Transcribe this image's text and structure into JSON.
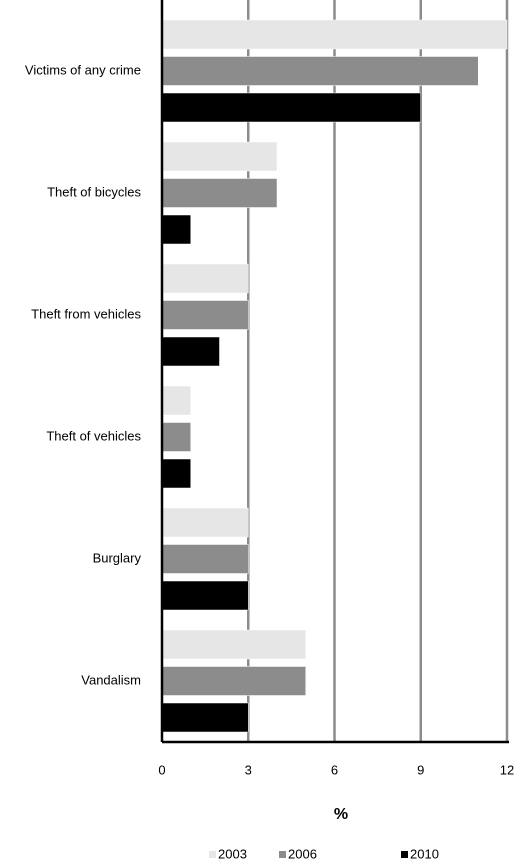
{
  "chart_data": {
    "type": "hbar",
    "categories": [
      "Victims of any crime",
      "Theft of bicycles",
      "Theft from vehicles",
      "Theft of vehicles",
      "Burglary",
      "Vandalism"
    ],
    "series": [
      {
        "name": "2003",
        "color": "#e6e6e6",
        "values": [
          12,
          4,
          3,
          1,
          3,
          5
        ]
      },
      {
        "name": "2006",
        "color": "#8c8c8c",
        "values": [
          11,
          4,
          3,
          1,
          3,
          5
        ]
      },
      {
        "name": "2010",
        "color": "#000000",
        "values": [
          9,
          1,
          2,
          1,
          3,
          3
        ]
      }
    ],
    "x_label": "%",
    "xlim": [
      0,
      12
    ],
    "xticks": [
      0,
      3,
      6,
      9,
      12
    ],
    "grid": true,
    "legend": "bottom"
  }
}
